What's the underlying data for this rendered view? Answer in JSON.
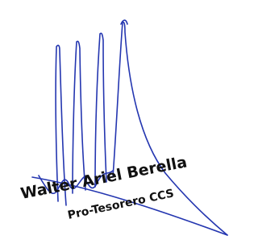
{
  "signature": {
    "name": "Walter Ariel Berella",
    "role": "Pro-Tesorero CCS"
  }
}
